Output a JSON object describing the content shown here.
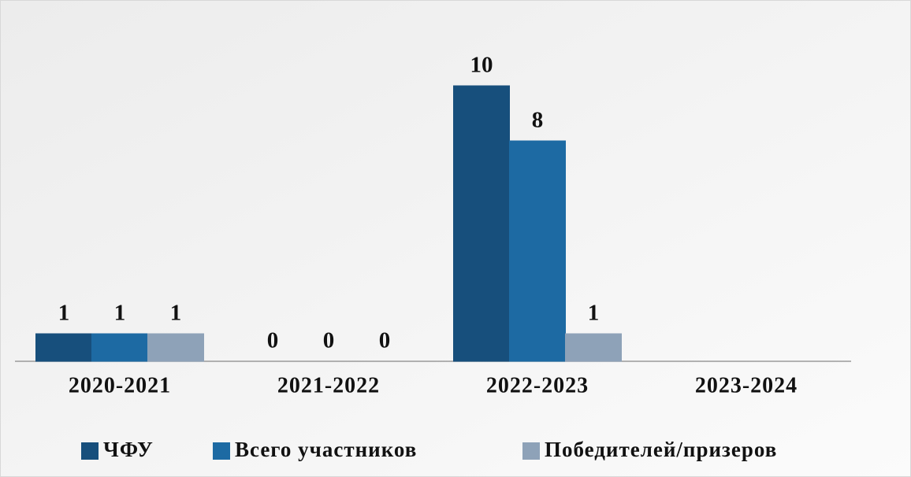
{
  "chart_data": {
    "type": "bar",
    "categories": [
      "2020-2021",
      "2021-2022",
      "2022-2023",
      "2023-2024"
    ],
    "series": [
      {
        "name": "ЧФУ",
        "color": "#174f7c",
        "values": [
          1,
          0,
          10,
          null
        ]
      },
      {
        "name": "Всего участников",
        "color": "#1d6aa3",
        "values": [
          1,
          0,
          8,
          null
        ]
      },
      {
        "name": "Победителей/призеров",
        "color": "#8ea2b8",
        "values": [
          1,
          0,
          1,
          null
        ]
      }
    ],
    "ylim": [
      0,
      10
    ],
    "legend": "bottom"
  }
}
